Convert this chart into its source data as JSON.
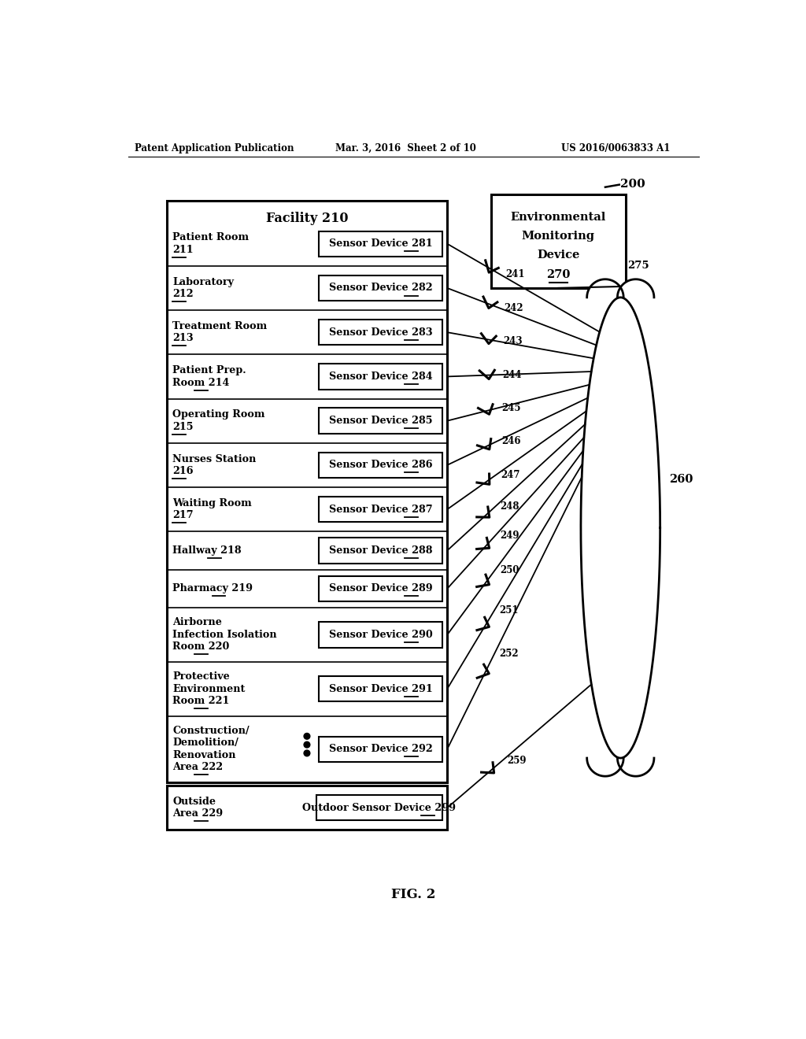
{
  "header_left": "Patent Application Publication",
  "header_mid": "Mar. 3, 2016  Sheet 2 of 10",
  "header_right": "US 2016/0063833 A1",
  "fig_label": "FIG. 2",
  "ref200": "200",
  "facility_title": "Facility 210",
  "rooms": [
    {
      "name": "Patient Room\n211",
      "sensor": "Sensor Device 281",
      "sensor_num": "281",
      "wire_num": "241"
    },
    {
      "name": "Laboratory\n212",
      "sensor": "Sensor Device 282",
      "sensor_num": "282",
      "wire_num": "242"
    },
    {
      "name": "Treatment Room\n213",
      "sensor": "Sensor Device 283",
      "sensor_num": "283",
      "wire_num": "243"
    },
    {
      "name": "Patient Prep.\nRoom 214",
      "sensor": "Sensor Device 284",
      "sensor_num": "284",
      "wire_num": "244"
    },
    {
      "name": "Operating Room\n215",
      "sensor": "Sensor Device 285",
      "sensor_num": "285",
      "wire_num": "245"
    },
    {
      "name": "Nurses Station\n216",
      "sensor": "Sensor Device 286",
      "sensor_num": "286",
      "wire_num": "246"
    },
    {
      "name": "Waiting Room\n217",
      "sensor": "Sensor Device 287",
      "sensor_num": "287",
      "wire_num": "247"
    },
    {
      "name": "Hallway 218",
      "sensor": "Sensor Device 288",
      "sensor_num": "288",
      "wire_num": "248"
    },
    {
      "name": "Pharmacy 219",
      "sensor": "Sensor Device 289",
      "sensor_num": "289",
      "wire_num": "249"
    },
    {
      "name": "Airborne\nInfection Isolation\nRoom 220",
      "sensor": "Sensor Device 290",
      "sensor_num": "290",
      "wire_num": "250"
    },
    {
      "name": "Protective\nEnvironment\nRoom 221",
      "sensor": "Sensor Device 291",
      "sensor_num": "291",
      "wire_num": "251"
    },
    {
      "name": "Construction/\nDemolition/\nRenovation\nArea 222",
      "sensor": "Sensor Device 292",
      "sensor_num": "292",
      "wire_num": "252"
    }
  ],
  "outside_room": "Outside\nArea 229",
  "outside_sensor": "Outdoor Sensor Device 299",
  "outside_wire_num": "259",
  "emd_lines": [
    "Environmental",
    "Monitoring",
    "Device"
  ],
  "emd_num": "270",
  "ref275": "275",
  "ref260": "260",
  "bg_color": "#ffffff",
  "text_color": "#000000",
  "room_ul_info": [
    [
      0,
      "Patient Room",
      "211",
      1
    ],
    [
      1,
      "Laboratory",
      "212",
      1
    ],
    [
      2,
      "Treatment Room",
      "213",
      1
    ],
    [
      3,
      "Patient Prep.",
      "214",
      1
    ],
    [
      4,
      "Operating Room",
      "215",
      1
    ],
    [
      5,
      "Nurses Station",
      "216",
      1
    ],
    [
      6,
      "Waiting Room",
      "217",
      1
    ],
    [
      7,
      "Hallway 218",
      "218",
      0
    ],
    [
      8,
      "Pharmacy 219",
      "219",
      0
    ],
    [
      9,
      "Airborne",
      "220",
      2
    ],
    [
      10,
      "Protective",
      "221",
      2
    ],
    [
      11,
      "Construction/",
      "222",
      3
    ]
  ]
}
